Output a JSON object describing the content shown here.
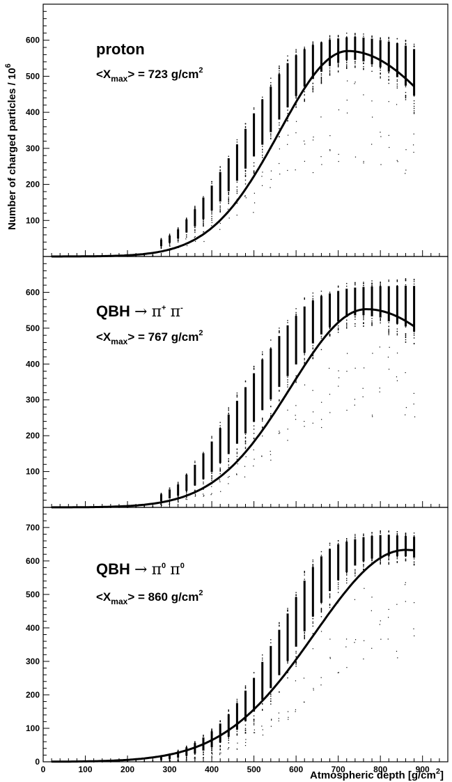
{
  "chart_data": [
    {
      "type": "scatter",
      "ylim": [
        0,
        700
      ],
      "xlim": [
        0,
        960
      ],
      "y_ticks": [
        100,
        200,
        300,
        400,
        500,
        600
      ],
      "annotation": {
        "particle": "proton",
        "xmax_text_pre": "<X",
        "xmax_sub": "max",
        "xmax_text_post": "> = 723 g/cm",
        "xmax_sup": "2"
      },
      "fit_curve": {
        "peak_depth": 723,
        "peak_value": 570,
        "x_start": 20,
        "x_end": 880,
        "end_value": 472
      },
      "scatter_columns": {
        "x": [
          280,
          300,
          320,
          340,
          360,
          380,
          400,
          420,
          440,
          460,
          480,
          500,
          520,
          540,
          560,
          580,
          600,
          620,
          640,
          660,
          680,
          700,
          720,
          740,
          760,
          780,
          800,
          820,
          840,
          860,
          880
        ],
        "lo": [
          22,
          30,
          40,
          52,
          65,
          80,
          100,
          120,
          145,
          170,
          200,
          230,
          260,
          295,
          330,
          365,
          400,
          430,
          455,
          480,
          500,
          510,
          520,
          520,
          515,
          505,
          495,
          480,
          460,
          430,
          395
        ],
        "hi": [
          50,
          62,
          80,
          110,
          140,
          175,
          210,
          250,
          290,
          330,
          375,
          420,
          460,
          495,
          530,
          560,
          580,
          595,
          605,
          610,
          615,
          618,
          620,
          622,
          620,
          618,
          615,
          612,
          610,
          606,
          600
        ]
      }
    },
    {
      "type": "scatter",
      "ylim": [
        0,
        700
      ],
      "xlim": [
        0,
        960
      ],
      "y_ticks": [
        100,
        200,
        300,
        400,
        500,
        600
      ],
      "annotation": {
        "particle": "QBH → π⁺ π⁻",
        "particle_main": "QBH",
        "particle_arrow": "→",
        "particle_p1": "π",
        "particle_p1_sup": "+",
        "particle_p2": "π",
        "particle_p2_sup": "-",
        "xmax_text_pre": "<X",
        "xmax_sub": "max",
        "xmax_text_post": "> = 767 g/cm",
        "xmax_sup": "2"
      },
      "fit_curve": {
        "peak_depth": 767,
        "peak_value": 553,
        "x_start": 20,
        "x_end": 880,
        "end_value": 505
      },
      "scatter_columns": {
        "x": [
          280,
          300,
          320,
          340,
          360,
          380,
          400,
          420,
          440,
          460,
          480,
          500,
          520,
          540,
          560,
          580,
          600,
          620,
          640,
          660,
          680,
          700,
          720,
          740,
          760,
          780,
          800,
          820,
          840,
          860,
          880
        ],
        "lo": [
          10,
          15,
          20,
          28,
          38,
          50,
          65,
          85,
          105,
          130,
          155,
          185,
          215,
          245,
          280,
          310,
          345,
          380,
          410,
          440,
          465,
          485,
          500,
          505,
          505,
          500,
          495,
          480,
          470,
          460,
          440
        ],
        "hi": [
          40,
          55,
          70,
          100,
          130,
          165,
          200,
          240,
          280,
          320,
          360,
          400,
          440,
          470,
          505,
          535,
          560,
          585,
          600,
          610,
          615,
          620,
          625,
          628,
          630,
          632,
          634,
          636,
          638,
          640,
          642
        ]
      }
    },
    {
      "type": "scatter",
      "ylim": [
        0,
        760
      ],
      "xlim": [
        0,
        960
      ],
      "y_ticks": [
        0,
        100,
        200,
        300,
        400,
        500,
        600,
        700
      ],
      "x_ticks": [
        0,
        100,
        200,
        300,
        400,
        500,
        600,
        700,
        800,
        900
      ],
      "xlabel": "Atmospheric depth [g/cm",
      "xlabel_sup": "2",
      "xlabel_end": "]",
      "annotation": {
        "particle": "QBH → π⁰ π⁰",
        "particle_main": "QBH",
        "particle_arrow": "→",
        "particle_p1": "π",
        "particle_p1_sup": "0",
        "particle_p2": "π",
        "particle_p2_sup": "0",
        "xmax_text_pre": "<X",
        "xmax_sub": "max",
        "xmax_text_post": "> = 860 g/cm",
        "xmax_sup": "2"
      },
      "fit_curve": {
        "peak_depth": 860,
        "peak_value": 633,
        "x_start": 20,
        "x_end": 880,
        "end_value": 632
      },
      "scatter_columns": {
        "x": [
          280,
          300,
          320,
          340,
          360,
          380,
          400,
          420,
          440,
          460,
          480,
          500,
          520,
          540,
          560,
          580,
          600,
          620,
          640,
          660,
          680,
          700,
          720,
          740,
          760,
          780,
          800,
          820,
          840,
          860,
          880
        ],
        "lo": [
          2,
          3,
          5,
          8,
          12,
          18,
          25,
          35,
          48,
          65,
          85,
          110,
          140,
          170,
          205,
          245,
          285,
          330,
          375,
          420,
          460,
          500,
          530,
          555,
          570,
          580,
          585,
          590,
          590,
          590,
          585
        ],
        "hi": [
          18,
          25,
          35,
          48,
          62,
          80,
          100,
          125,
          155,
          190,
          230,
          270,
          320,
          370,
          420,
          470,
          520,
          570,
          610,
          640,
          660,
          670,
          675,
          680,
          685,
          688,
          690,
          690,
          688,
          686,
          684
        ]
      }
    }
  ],
  "ylabel": "Number of charged particles / 10",
  "ylabel_sup": "6"
}
